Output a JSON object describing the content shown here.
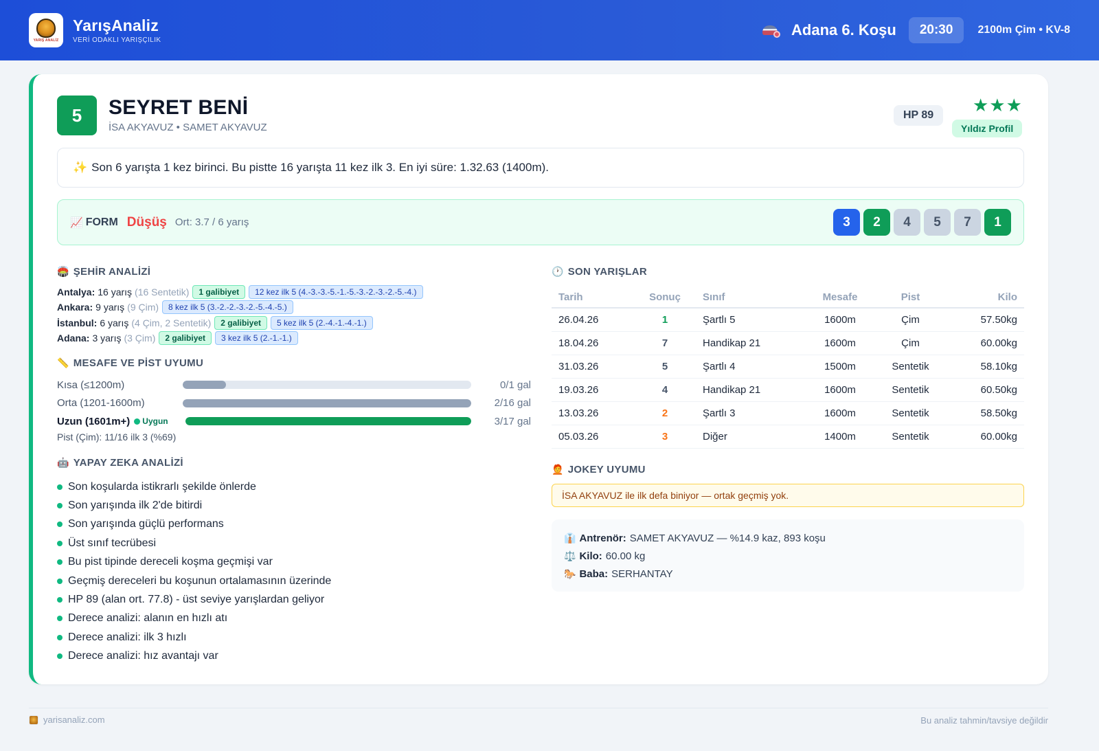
{
  "header": {
    "brand_name": "YarışAnaliz",
    "brand_tagline": "VERİ ODAKLI YARIŞÇILIK",
    "logo_text": "YARIŞ ANALİZ",
    "race_title": "Adana 6. Koşu",
    "race_time": "20:30",
    "race_info": "2100m Çim • KV-8"
  },
  "horse": {
    "number": "5",
    "name": "SEYRET BENİ",
    "subtitle": "İSA AKYAVUZ • SAMET AKYAVUZ",
    "hp": "HP 89",
    "stars": "★★★",
    "star_count": 3,
    "profile": "Yıldız Profil"
  },
  "summary": {
    "icon": "sparkles-icon",
    "text": "Son 6 yarışta 1 kez birinci. Bu pistte 16 yarışta 11 kez ilk 3. En iyi süre: 1.32.63 (1400m)."
  },
  "form": {
    "label": "FORM",
    "trend": "Düşüş",
    "avg": "Ort: 3.7 / 6 yarış",
    "results": [
      {
        "value": "3",
        "color": "#2563eb"
      },
      {
        "value": "2",
        "color": "#0f9d58"
      },
      {
        "value": "4",
        "color": "#cbd5e1"
      },
      {
        "value": "5",
        "color": "#cbd5e1"
      },
      {
        "value": "7",
        "color": "#cbd5e1"
      },
      {
        "value": "1",
        "color": "#0f9d58"
      }
    ]
  },
  "city": {
    "title": "ŞEHİR ANALİZİ",
    "rows": [
      {
        "city": "Antalya:",
        "count": "16 yarış",
        "detail": "(16 Sentetik)",
        "wins": "1 galibiyet",
        "top5": "12 kez ilk 5 (4.-3.-3.-5.-1.-5.-3.-2.-3.-2.-5.-4.)"
      },
      {
        "city": "Ankara:",
        "count": "9 yarış",
        "detail": "(9 Çim)",
        "wins": "",
        "top5": "8 kez ilk 5 (3.-2.-2.-3.-2.-5.-4.-5.)"
      },
      {
        "city": "İstanbul:",
        "count": "6 yarış",
        "detail": "(4 Çim, 2 Sentetik)",
        "wins": "2 galibiyet",
        "top5": "5 kez ilk 5 (2.-4.-1.-4.-1.)"
      },
      {
        "city": "Adana:",
        "count": "3 yarış",
        "detail": "(3 Çim)",
        "wins": "2 galibiyet",
        "top5": "3 kez ilk 5 (2.-1.-1.)"
      }
    ]
  },
  "distance": {
    "title": "MESAFE VE PİST UYUMU",
    "rows": [
      {
        "label": "Kısa (≤1200m)",
        "value": "0/1 gal",
        "fill": 0.15,
        "strong": false
      },
      {
        "label": "Orta (1201-1600m)",
        "value": "2/16 gal",
        "fill": 1.0,
        "strong": false
      },
      {
        "label": "Uzun (1601m+)",
        "value": "3/17 gal",
        "fill": 1.0,
        "strong": true,
        "badge": "Uygun"
      }
    ],
    "pist": "Pist (Çim): 11/16 ilk 3 (%69)"
  },
  "ai": {
    "title": "YAPAY ZEKA ANALİZİ",
    "items": [
      "Son koşularda istikrarlı şekilde önlerde",
      "Son yarışında ilk 2'de bitirdi",
      "Son yarışında güçlü performans",
      "Üst sınıf tecrübesi",
      "Bu pist tipinde dereceli koşma geçmişi var",
      "Geçmiş dereceleri bu koşunun ortalamasının üzerinde",
      "HP 89 (alan ort. 77.8) - üst seviye yarışlardan geliyor",
      "Derece analizi: alanın en hızlı atı",
      "Derece analizi: ilk 3 hızlı",
      "Derece analizi: hız avantajı var"
    ]
  },
  "races": {
    "title": "SON YARIŞLAR",
    "headers": [
      "Tarih",
      "Sonuç",
      "Sınıf",
      "Mesafe",
      "Pist",
      "Kilo"
    ],
    "rows": [
      {
        "date": "26.04.26",
        "result": "1",
        "class": "Şartlı 5",
        "distance": "1600m",
        "track": "Çim",
        "weight": "57.50kg",
        "tone": "g"
      },
      {
        "date": "18.04.26",
        "result": "7",
        "class": "Handikap 21",
        "distance": "1600m",
        "track": "Çim",
        "weight": "60.00kg",
        "tone": "d"
      },
      {
        "date": "31.03.26",
        "result": "5",
        "class": "Şartlı 4",
        "distance": "1500m",
        "track": "Sentetik",
        "weight": "58.10kg",
        "tone": "d"
      },
      {
        "date": "19.03.26",
        "result": "4",
        "class": "Handikap 21",
        "distance": "1600m",
        "track": "Sentetik",
        "weight": "60.50kg",
        "tone": "d"
      },
      {
        "date": "13.03.26",
        "result": "2",
        "class": "Şartlı 3",
        "distance": "1600m",
        "track": "Sentetik",
        "weight": "58.50kg",
        "tone": "o"
      },
      {
        "date": "05.03.26",
        "result": "3",
        "class": "Diğer",
        "distance": "1400m",
        "track": "Sentetik",
        "weight": "60.00kg",
        "tone": "o"
      }
    ]
  },
  "jokey": {
    "title": "JOKEY UYUMU",
    "note": "İSA AKYAVUZ ile ilk defa biniyor — ortak geçmiş yok."
  },
  "details": {
    "trainer_label": "Antrenör:",
    "trainer_value": "SAMET AKYAVUZ — %14.9 kaz, 893 koşu",
    "weight_label": "Kilo:",
    "weight_value": "60.00 kg",
    "sire_label": "Baba:",
    "sire_value": "SERHANTAY"
  },
  "footer": {
    "site": "yarisanaliz.com",
    "disclaimer": "Bu analiz tahmin/tavsiye değildir"
  },
  "colors": {
    "header_bg": "#1d4ed8",
    "accent_green": "#0f9d58",
    "trend_red": "#ef4444",
    "result_orange": "#f97316"
  }
}
